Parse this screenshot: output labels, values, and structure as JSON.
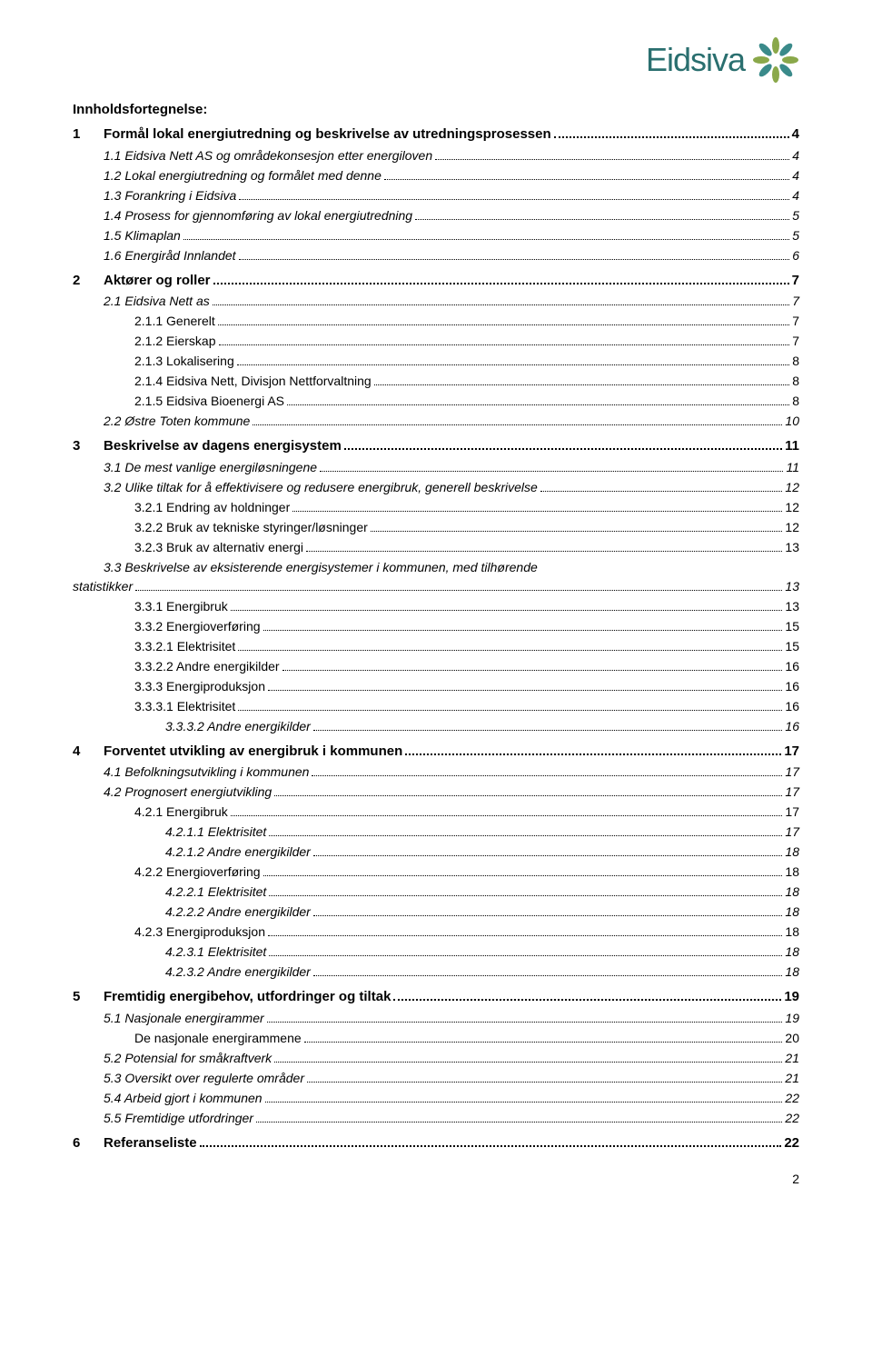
{
  "brand": {
    "name": "Eidsiva",
    "text_color": "#2a6f6f"
  },
  "doc_title": "Innholdsfortegnelse:",
  "page_number": "2",
  "toc": [
    {
      "level": 1,
      "num": "1",
      "title": "Formål lokal energiutredning og beskrivelse av utredningsprosessen",
      "page": "4"
    },
    {
      "level": 2,
      "num": "1.1",
      "title": "Eidsiva Nett AS og områdekonsesjon etter energiloven",
      "page": "4"
    },
    {
      "level": 2,
      "num": "1.2",
      "title": "Lokal energiutredning og formålet med denne",
      "page": "4"
    },
    {
      "level": 2,
      "num": "1.3",
      "title": "Forankring i Eidsiva",
      "page": "4"
    },
    {
      "level": 2,
      "num": "1.4",
      "title": "Prosess for gjennomføring av lokal energiutredning",
      "page": "5"
    },
    {
      "level": 2,
      "num": "1.5",
      "title": "Klimaplan",
      "page": "5"
    },
    {
      "level": 2,
      "num": "1.6",
      "title": "Energiråd Innlandet",
      "page": "6"
    },
    {
      "level": 1,
      "num": "2",
      "title": "Aktører og roller",
      "page": "7"
    },
    {
      "level": 2,
      "num": "2.1",
      "title": "Eidsiva Nett as",
      "page": "7"
    },
    {
      "level": 3,
      "num": "2.1.1",
      "title": "Generelt",
      "page": "7"
    },
    {
      "level": 3,
      "num": "2.1.2",
      "title": "Eierskap",
      "page": "7"
    },
    {
      "level": 3,
      "num": "2.1.3",
      "title": "Lokalisering",
      "page": "8"
    },
    {
      "level": 3,
      "num": "2.1.4",
      "title": "Eidsiva Nett, Divisjon Nettforvaltning",
      "page": "8"
    },
    {
      "level": 3,
      "num": "2.1.5",
      "title": "Eidsiva Bioenergi AS",
      "page": "8"
    },
    {
      "level": 2,
      "num": "2.2",
      "title": "Østre Toten kommune",
      "page": "10"
    },
    {
      "level": 1,
      "num": "3",
      "title": "Beskrivelse av dagens energisystem",
      "page": "11"
    },
    {
      "level": 2,
      "num": "3.1",
      "title": "De mest vanlige energiløsningene",
      "page": "11"
    },
    {
      "level": 2,
      "num": "3.2",
      "title": "Ulike tiltak for å effektivisere og redusere energibruk, generell beskrivelse",
      "page": "12"
    },
    {
      "level": 3,
      "num": "3.2.1",
      "title": "Endring av holdninger",
      "page": "12"
    },
    {
      "level": 3,
      "num": "3.2.2",
      "title": "Bruk av tekniske styringer/løsninger",
      "page": "12"
    },
    {
      "level": 3,
      "num": "3.2.3",
      "title": "Bruk av alternativ energi",
      "page": "13"
    },
    {
      "level": 2,
      "num": "3.3",
      "title": "Beskrivelse av eksisterende energisystemer i kommunen, med tilhørende statistikker",
      "page": "13",
      "wrap": true
    },
    {
      "level": 3,
      "num": "3.3.1",
      "title": "Energibruk",
      "page": "13"
    },
    {
      "level": 3,
      "num": "3.3.2",
      "title": "Energioverføring",
      "page": "15"
    },
    {
      "level": 3,
      "num": "3.3.2.1",
      "title": "Elektrisitet",
      "page": "15"
    },
    {
      "level": 3,
      "num": "3.3.2.2",
      "title": "Andre energikilder",
      "page": "16"
    },
    {
      "level": 3,
      "num": "3.3.3",
      "title": "Energiproduksjon",
      "page": "16"
    },
    {
      "level": 3,
      "num": "3.3.3.1",
      "title": "Elektrisitet",
      "page": "16"
    },
    {
      "level": 4,
      "num": "3.3.3.2",
      "title": "Andre energikilder",
      "page": "16"
    },
    {
      "level": 1,
      "num": "4",
      "title": "Forventet utvikling av energibruk i kommunen",
      "page": "17"
    },
    {
      "level": 2,
      "num": "4.1",
      "title": "Befolkningsutvikling i kommunen",
      "page": "17"
    },
    {
      "level": 2,
      "num": "4.2",
      "title": "Prognosert energiutvikling",
      "page": "17"
    },
    {
      "level": 3,
      "num": "4.2.1",
      "title": "Energibruk",
      "page": "17"
    },
    {
      "level": 4,
      "num": "4.2.1.1",
      "title": "Elektrisitet",
      "page": "17"
    },
    {
      "level": 4,
      "num": "4.2.1.2",
      "title": "Andre energikilder",
      "page": "18"
    },
    {
      "level": 3,
      "num": "4.2.2",
      "title": "Energioverføring",
      "page": "18"
    },
    {
      "level": 4,
      "num": "4.2.2.1",
      "title": "Elektrisitet",
      "page": "18"
    },
    {
      "level": 4,
      "num": "4.2.2.2",
      "title": "Andre energikilder",
      "page": "18"
    },
    {
      "level": 3,
      "num": "4.2.3",
      "title": "Energiproduksjon",
      "page": "18"
    },
    {
      "level": 4,
      "num": "4.2.3.1",
      "title": "Elektrisitet",
      "page": "18"
    },
    {
      "level": 4,
      "num": "4.2.3.2",
      "title": "Andre energikilder",
      "page": "18"
    },
    {
      "level": 1,
      "num": "5",
      "title": "Fremtidig energibehov, utfordringer og tiltak",
      "page": "19"
    },
    {
      "level": 2,
      "num": "5.1",
      "title": "Nasjonale energirammer",
      "page": "19"
    },
    {
      "level": 3,
      "num": "",
      "title": "De nasjonale energirammene",
      "page": "20"
    },
    {
      "level": 2,
      "num": "5.2",
      "title": "Potensial for småkraftverk",
      "page": "21"
    },
    {
      "level": 2,
      "num": "5.3",
      "title": "Oversikt over regulerte områder",
      "page": "21"
    },
    {
      "level": 2,
      "num": "5.4",
      "title": "Arbeid gjort i kommunen",
      "page": "22"
    },
    {
      "level": 2,
      "num": "5.5",
      "title": "Fremtidige utfordringer",
      "page": "22"
    },
    {
      "level": 1,
      "num": "6",
      "title": "Referanseliste",
      "page": "22"
    }
  ]
}
